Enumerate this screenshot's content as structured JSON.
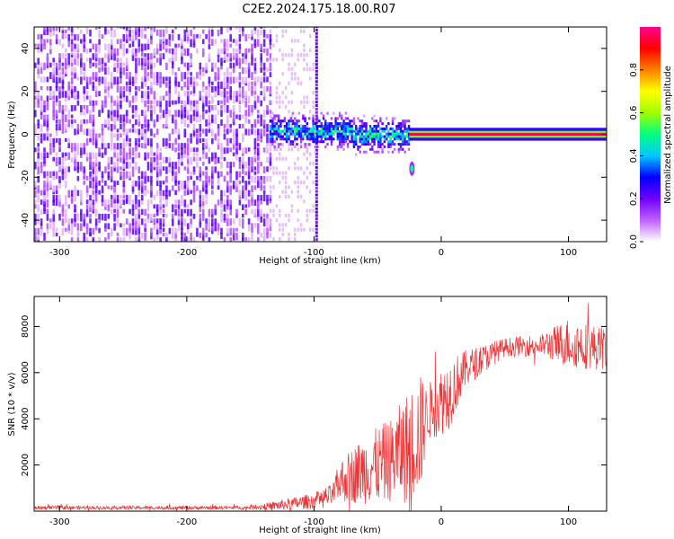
{
  "figure": {
    "title": "C2E2.2024.175.18.00.R07"
  },
  "chart_data": [
    {
      "type": "heatmap",
      "xlabel": "Height of straight line (km)",
      "ylabel": "Frequency (Hz)",
      "xlim": [
        -320,
        130
      ],
      "ylim": [
        -50,
        50
      ],
      "xticks": [
        -300,
        -200,
        -100,
        0,
        100
      ],
      "yticks": [
        -40,
        -20,
        0,
        20,
        40
      ],
      "colorbar": {
        "label": "Normalized spectral amplitude",
        "range": [
          0,
          1
        ],
        "ticks": [
          0.0,
          0.2,
          0.4,
          0.6,
          0.8
        ],
        "tick_labels": [
          "0.0",
          "0.2",
          "0.4",
          "0.6",
          "0.8"
        ],
        "colormap": [
          "#ffffff",
          "#c060ff",
          "#7000ff",
          "#0000ff",
          "#00c8ff",
          "#00ff80",
          "#a0ff00",
          "#ffff00",
          "#ff8000",
          "#ff0000",
          "#ff0090"
        ]
      },
      "regions": [
        {
          "x_range": [
            -320,
            -135
          ],
          "description": "broadband noise",
          "amplitude": 0.1
        },
        {
          "x_range": [
            -135,
            -98
          ],
          "description": "noise",
          "amplitude": 0.08
        },
        {
          "x_range": [
            -135,
            -25
          ],
          "freq_range": [
            -10,
            10
          ],
          "description": "signal emergence",
          "amplitude": 0.35
        },
        {
          "x_range": [
            -25,
            130
          ],
          "freq": 0,
          "description": "carrier line",
          "amplitude": 0.95
        }
      ],
      "features": [
        {
          "x": -23,
          "freq": -16,
          "amplitude": 0.5
        }
      ]
    },
    {
      "type": "line",
      "xlabel": "Height of straight line (km)",
      "ylabel": "SNR (10 * v/v)",
      "xlim": [
        -320,
        130
      ],
      "ylim": [
        0,
        9300
      ],
      "xticks": [
        -300,
        -200,
        -100,
        0,
        100
      ],
      "yticks": [
        2000,
        4000,
        6000,
        8000
      ],
      "color": "#ee3333",
      "series_envelope": [
        {
          "x": -320,
          "mean": 150,
          "spread": 80
        },
        {
          "x": -150,
          "mean": 150,
          "spread": 80
        },
        {
          "x": -120,
          "mean": 300,
          "spread": 250
        },
        {
          "x": -100,
          "mean": 450,
          "spread": 350
        },
        {
          "x": -85,
          "mean": 700,
          "spread": 500
        },
        {
          "x": -80,
          "mean": 1300,
          "spread": 900
        },
        {
          "x": -60,
          "mean": 1800,
          "spread": 1500
        },
        {
          "x": -40,
          "mean": 2200,
          "spread": 1800
        },
        {
          "x": -25,
          "mean": 2800,
          "spread": 2500
        },
        {
          "x": -15,
          "mean": 3500,
          "spread": 2500
        },
        {
          "x": -12,
          "mean": 4200,
          "spread": 1200
        },
        {
          "x": 5,
          "mean": 5000,
          "spread": 1600
        },
        {
          "x": 20,
          "mean": 6200,
          "spread": 800
        },
        {
          "x": 50,
          "mean": 7100,
          "spread": 400
        },
        {
          "x": 80,
          "mean": 7200,
          "spread": 500
        },
        {
          "x": 100,
          "mean": 7300,
          "spread": 1100
        },
        {
          "x": 130,
          "mean": 7000,
          "spread": 900
        }
      ]
    }
  ]
}
